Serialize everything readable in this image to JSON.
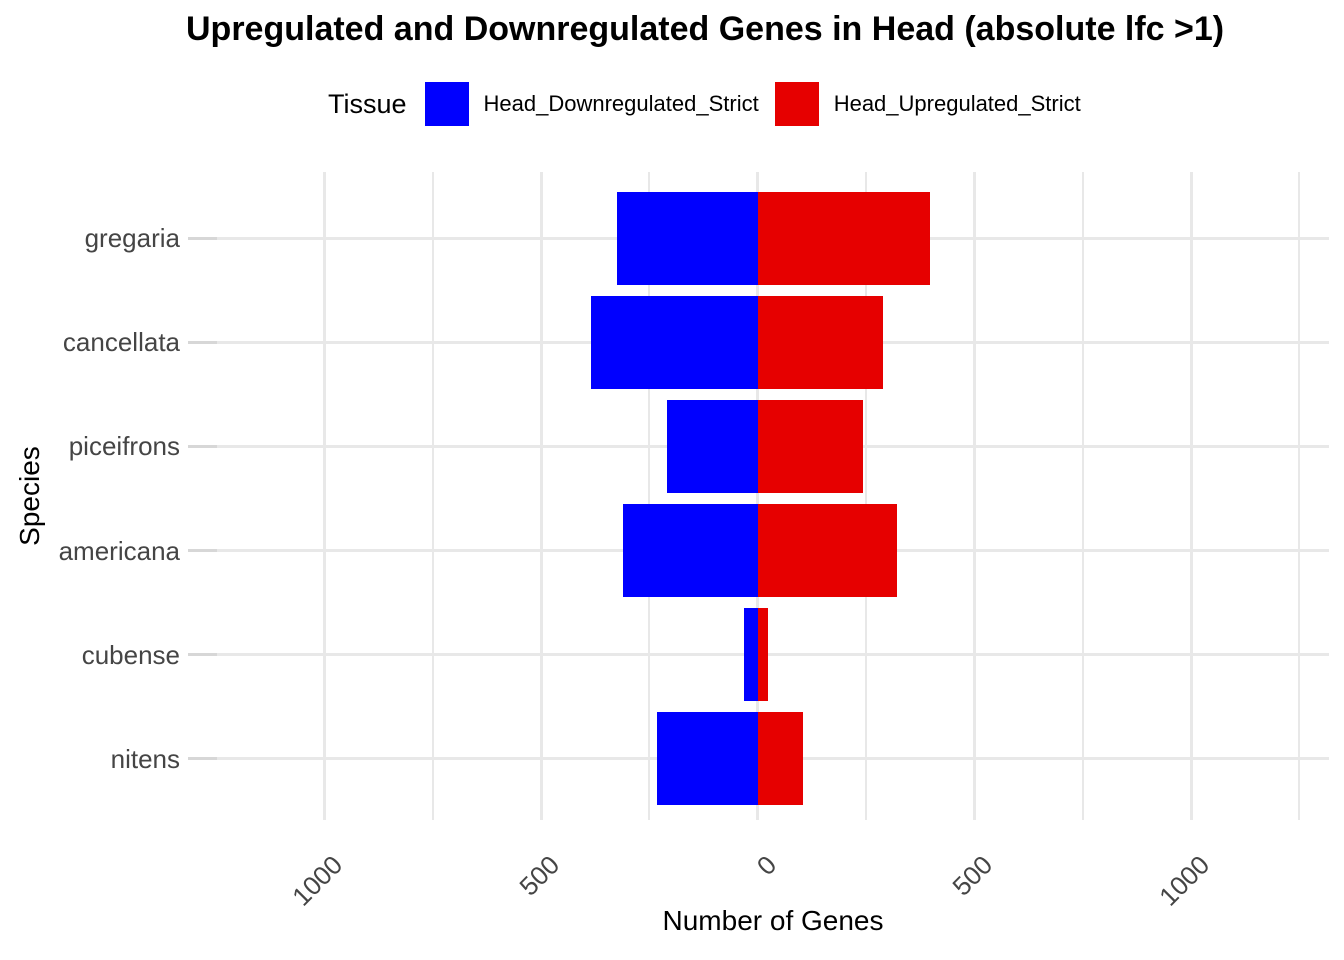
{
  "title": "Upregulated and Downregulated Genes in Head (absolute lfc >1)",
  "legend": {
    "title": "Tissue",
    "items": [
      {
        "label": "Head_Downregulated_Strict",
        "color": "#0000FF"
      },
      {
        "label": "Head_Upregulated_Strict",
        "color": "#E60000"
      }
    ]
  },
  "chart_data": {
    "type": "bar",
    "orientation": "horizontal-diverging",
    "title": "Upregulated and Downregulated Genes in Head (absolute lfc >1)",
    "xlabel": "Number of Genes",
    "ylabel": "Species",
    "categories": [
      "gregaria",
      "cancellata",
      "piceifrons",
      "americana",
      "cubense",
      "nitens"
    ],
    "series": [
      {
        "name": "Head_Downregulated_Strict",
        "color": "#0000FF",
        "values": [
          -325,
          -385,
          -210,
          -310,
          -32,
          -232
        ]
      },
      {
        "name": "Head_Upregulated_Strict",
        "color": "#E60000",
        "values": [
          397,
          290,
          244,
          322,
          25,
          104
        ]
      }
    ],
    "xlim": [
      -1250,
      1320
    ],
    "x_major_ticks": [
      -1000,
      -500,
      0,
      500,
      1000
    ],
    "x_tick_labels": [
      "1000",
      "500",
      "0",
      "500",
      "1000"
    ],
    "x_minor_ticks": [
      -1250,
      -750,
      -250,
      250,
      750,
      1250
    ],
    "grid": true,
    "grid_color": "#E8E8E8",
    "background": "#FFFFFF",
    "legend_position": "top",
    "bar_relative_width": 0.9
  }
}
